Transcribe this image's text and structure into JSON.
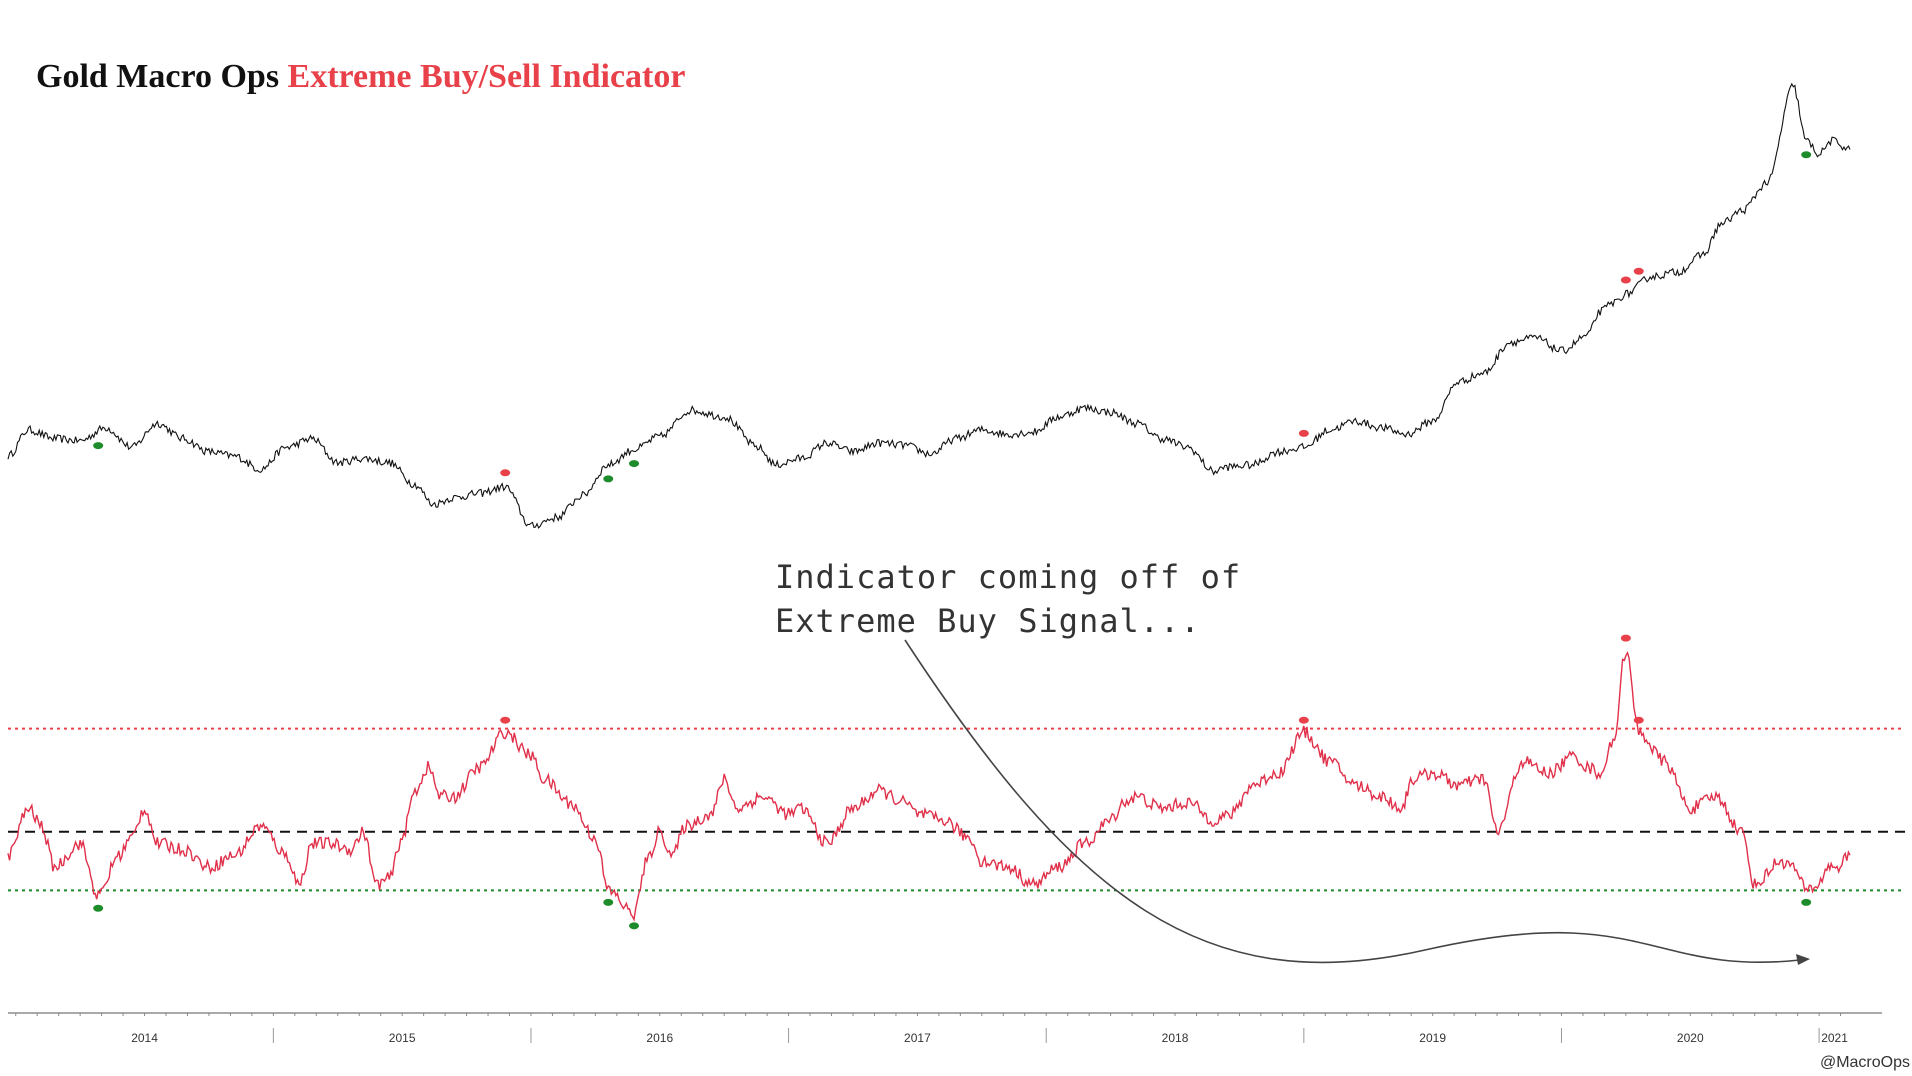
{
  "title": {
    "main": "Gold Macro Ops",
    "accent": "Extreme Buy/Sell Indicator"
  },
  "annotation": "Indicator coming off of Extreme Buy Signal...",
  "credit": "@MacroOps",
  "colors": {
    "price": "#111111",
    "indicator": "#e0304a",
    "sell_signal": "#e8414a",
    "buy_signal": "#1e8c2a",
    "midline": "#111111"
  },
  "chart_data": [
    {
      "type": "line",
      "name": "price",
      "title": "",
      "x_domain": [
        2013.97,
        2021.12
      ],
      "series": [
        {
          "name": "",
          "x": [
            2013.97,
            2014.05,
            2014.15,
            2014.25,
            2014.35,
            2014.45,
            2014.55,
            2014.65,
            2014.75,
            2014.85,
            2014.95,
            2015.05,
            2015.15,
            2015.25,
            2015.35,
            2015.45,
            2015.55,
            2015.62,
            2015.7,
            2015.8,
            2015.9,
            2016.0,
            2016.1,
            2016.2,
            2016.3,
            2016.4,
            2016.5,
            2016.62,
            2016.75,
            2016.88,
            2016.95,
            2017.05,
            2017.15,
            2017.25,
            2017.35,
            2017.45,
            2017.55,
            2017.65,
            2017.75,
            2017.85,
            2017.95,
            2018.05,
            2018.15,
            2018.25,
            2018.35,
            2018.45,
            2018.55,
            2018.65,
            2018.7,
            2018.8,
            2018.9,
            2019.0,
            2019.1,
            2019.2,
            2019.3,
            2019.4,
            2019.5,
            2019.6,
            2019.7,
            2019.8,
            2019.9,
            2020.0,
            2020.1,
            2020.15,
            2020.2,
            2020.25,
            2020.35,
            2020.45,
            2020.55,
            2020.62,
            2020.7,
            2020.8,
            2020.9,
            2020.95,
            2021.0,
            2021.05,
            2021.12
          ],
          "y": [
            1230,
            1290,
            1270,
            1265,
            1295,
            1250,
            1305,
            1270,
            1240,
            1230,
            1200,
            1250,
            1270,
            1215,
            1225,
            1215,
            1165,
            1120,
            1135,
            1145,
            1160,
            1070,
            1090,
            1140,
            1210,
            1245,
            1275,
            1335,
            1320,
            1250,
            1210,
            1225,
            1260,
            1240,
            1260,
            1255,
            1235,
            1270,
            1290,
            1280,
            1285,
            1320,
            1340,
            1330,
            1305,
            1270,
            1250,
            1195,
            1205,
            1210,
            1240,
            1250,
            1290,
            1310,
            1295,
            1280,
            1310,
            1400,
            1420,
            1490,
            1500,
            1470,
            1505,
            1560,
            1580,
            1600,
            1640,
            1650,
            1690,
            1760,
            1790,
            1855,
            2075,
            1950,
            1920,
            1950,
            1930
          ]
        }
      ]
    },
    {
      "type": "line",
      "name": "indicator",
      "title": "",
      "x_domain": [
        2013.97,
        2021.12
      ],
      "y_domain": [
        -1.35,
        1.85
      ],
      "reference_lines": [
        {
          "value": 0.88,
          "style": "dotted",
          "role": "sell"
        },
        {
          "value": 0.0,
          "style": "dashed",
          "role": "mid"
        },
        {
          "value": -0.5,
          "style": "dotted",
          "role": "buy"
        }
      ],
      "series": [
        {
          "name": "",
          "x": [
            2013.97,
            2014.05,
            2014.1,
            2014.15,
            2014.25,
            2014.32,
            2014.4,
            2014.45,
            2014.5,
            2014.55,
            2014.65,
            2014.75,
            2014.85,
            2014.95,
            2015.05,
            2015.1,
            2015.15,
            2015.22,
            2015.3,
            2015.35,
            2015.4,
            2015.45,
            2015.5,
            2015.55,
            2015.6,
            2015.65,
            2015.7,
            2015.8,
            2015.9,
            2016.0,
            2016.05,
            2016.15,
            2016.25,
            2016.3,
            2016.4,
            2016.45,
            2016.5,
            2016.55,
            2016.6,
            2016.7,
            2016.75,
            2016.8,
            2016.9,
            2017.0,
            2017.05,
            2017.15,
            2017.25,
            2017.35,
            2017.45,
            2017.5,
            2017.6,
            2017.7,
            2017.75,
            2017.85,
            2017.95,
            2018.05,
            2018.15,
            2018.25,
            2018.3,
            2018.35,
            2018.45,
            2018.55,
            2018.65,
            2018.72,
            2018.8,
            2018.9,
            2019.0,
            2019.1,
            2019.2,
            2019.3,
            2019.38,
            2019.42,
            2019.5,
            2019.6,
            2019.7,
            2019.75,
            2019.85,
            2019.95,
            2020.05,
            2020.1,
            2020.15,
            2020.2,
            2020.25,
            2020.3,
            2020.4,
            2020.5,
            2020.6,
            2020.7,
            2020.75,
            2020.85,
            2020.9,
            2020.95,
            2021.0,
            2021.03,
            2021.07,
            2021.12
          ],
          "y": [
            -0.2,
            0.2,
            0.05,
            -0.3,
            -0.1,
            -0.55,
            -0.2,
            -0.05,
            0.2,
            -0.1,
            -0.15,
            -0.3,
            -0.2,
            0.05,
            -0.2,
            -0.45,
            -0.1,
            -0.1,
            -0.15,
            0.0,
            -0.45,
            -0.4,
            -0.05,
            0.35,
            0.55,
            0.3,
            0.3,
            0.55,
            0.85,
            0.65,
            0.45,
            0.25,
            -0.05,
            -0.5,
            -0.7,
            -0.25,
            0.0,
            -0.2,
            0.05,
            0.15,
            0.45,
            0.2,
            0.3,
            0.15,
            0.2,
            -0.1,
            0.2,
            0.35,
            0.25,
            0.15,
            0.1,
            -0.05,
            -0.25,
            -0.3,
            -0.45,
            -0.3,
            -0.1,
            0.1,
            0.25,
            0.3,
            0.2,
            0.25,
            0.1,
            0.15,
            0.4,
            0.5,
            0.85,
            0.6,
            0.4,
            0.3,
            0.2,
            0.45,
            0.5,
            0.4,
            0.45,
            0.0,
            0.6,
            0.5,
            0.65,
            0.55,
            0.5,
            0.75,
            1.55,
            0.85,
            0.6,
            0.2,
            0.3,
            0.0,
            -0.45,
            -0.25,
            -0.3,
            -0.5,
            -0.45,
            -0.3,
            -0.3,
            -0.2
          ]
        }
      ]
    },
    {
      "type": "timeline",
      "name": "x-axis",
      "x_domain": [
        2013.97,
        2021.12
      ],
      "years": [
        "2014",
        "2015",
        "2016",
        "2017",
        "2018",
        "2019",
        "2020",
        "2021"
      ]
    }
  ]
}
